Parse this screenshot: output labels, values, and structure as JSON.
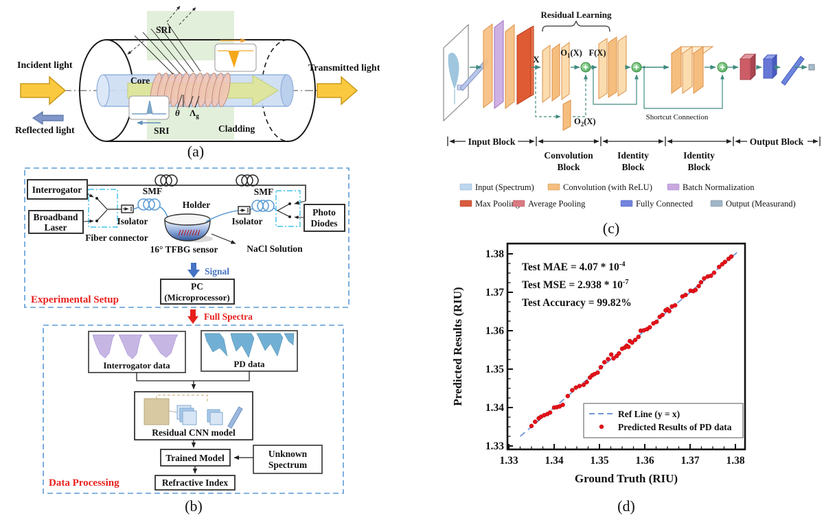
{
  "colors": {
    "teal_arrow": "#3E8A7E",
    "dashed_box_blue": "#5B9BD5",
    "connector_cyan": "#3FC0E8",
    "red_title": "#E8201C",
    "signal_blue": "#4472C4",
    "sri_green_bg": "#E2EFDA",
    "yellow_arrow": "#FBC93F",
    "core_blue": "#CDDDF2",
    "grating_salmon": "#F1C4B5"
  },
  "panel_a": {
    "caption": "(a)",
    "incident_light": "Incident light",
    "transmitted_light": "Transmitted light",
    "reflected_light": "Reflected light",
    "core": "Core",
    "cladding": "Cladding",
    "sri_top": "SRI",
    "sri_bottom": "SRI",
    "theta": "θ",
    "grating_period": {
      "base": "Λ",
      "sub": "g"
    }
  },
  "panel_b": {
    "caption": "(b)",
    "setup": {
      "title": "Experimental Setup",
      "interrogator": "Interrogator",
      "broadband_laser": {
        "line1": "Broadband",
        "line2": "Laser"
      },
      "fiber_connector": "Fiber connector",
      "isolator_left": "Isolator",
      "isolator_right": "Isolator",
      "smf_left": "SMF",
      "smf_right": "SMF",
      "holder": "Holder",
      "tfbg_sensor": "16° TFBG sensor",
      "nacl_solution": "NaCl Solution",
      "photo_diodes": {
        "line1": "Photo",
        "line2": "Diodes"
      },
      "signal": "Signal",
      "pc": {
        "line1": "PC",
        "line2": "(Microprocessor)"
      }
    },
    "full_spectra": "Full Spectra",
    "processing": {
      "title": "Data Processing",
      "interrogator_data": "Interrogator data",
      "pd_data": "PD data",
      "residual_cnn": "Residual CNN model",
      "trained_model": "Trained Model",
      "unknown_spectrum": {
        "line1": "Unknown",
        "line2": "Spectrum"
      },
      "refractive_index": "Refractive Index"
    }
  },
  "panel_c": {
    "caption": "(c)",
    "residual_learning": "Residual Learning",
    "x": "X",
    "o1": {
      "base": "O",
      "sub": "1",
      "rest": "(X)"
    },
    "fx": "F(X)",
    "o2": {
      "base": "O",
      "sub": "2",
      "rest": "(X)"
    },
    "shortcut_connection": "Shortcut Connection",
    "blocks": [
      {
        "line1": "Input Block",
        "line2": ""
      },
      {
        "line1": "Convolution",
        "line2": "Block"
      },
      {
        "line1": "Identity",
        "line2": "Block"
      },
      {
        "line1": "Identity",
        "line2": "Block"
      },
      {
        "line1": "Output Block",
        "line2": ""
      }
    ],
    "legend": [
      {
        "label": "Input (Spectrum)",
        "color": "#BDD7EE"
      },
      {
        "label": "Convolution (with ReLU)",
        "color": "#F5BE7E"
      },
      {
        "label": "Batch Normalization",
        "color": "#C9A8E0"
      },
      {
        "label": "Max Pooling",
        "color": "#D75B3F"
      },
      {
        "label": "Average Pooling",
        "color": "#D97B80"
      },
      {
        "label": "Fully Connected",
        "color": "#7284DC"
      },
      {
        "label": "Output (Measurand)",
        "color": "#9FB6C9"
      }
    ]
  },
  "panel_d": {
    "caption": "(d)"
  },
  "chart_data": {
    "type": "scatter",
    "title": "",
    "xlabel": "Ground Truth (RIU)",
    "ylabel": "Predicted Results (RIU)",
    "xlim": [
      1.33,
      1.38
    ],
    "ylim": [
      1.33,
      1.38
    ],
    "xticks": [
      1.33,
      1.34,
      1.35,
      1.36,
      1.37,
      1.38
    ],
    "yticks": [
      1.33,
      1.34,
      1.35,
      1.36,
      1.37,
      1.38
    ],
    "minor_tick_step": 0.0025,
    "grid": false,
    "legend_position": "lower right",
    "annotations": [
      {
        "base": "Test MAE = 4.07 * 10",
        "sup": "-4"
      },
      {
        "base": "Test MSE = 2.938 * 10",
        "sup": "-7"
      },
      {
        "base": "Test Accuracy = 99.82%",
        "sup": ""
      }
    ],
    "legend": [
      {
        "label": "Ref Line (y = x)",
        "marker": "dashed-line",
        "color": "#7096D8"
      },
      {
        "label": "Predicted Results of PD data",
        "marker": "dot",
        "color": "#E8111B"
      }
    ],
    "ref_line": {
      "x1": 1.3325,
      "y1": 1.3325,
      "x2": 1.3805,
      "y2": 1.3805
    },
    "series": [
      {
        "name": "Predicted Results of PD data",
        "points": [
          [
            1.335,
            1.3352
          ],
          [
            1.3358,
            1.3363
          ],
          [
            1.3366,
            1.3372
          ],
          [
            1.3371,
            1.3376
          ],
          [
            1.3378,
            1.338
          ],
          [
            1.3385,
            1.3383
          ],
          [
            1.3391,
            1.3387
          ],
          [
            1.34,
            1.34
          ],
          [
            1.3406,
            1.3401
          ],
          [
            1.3412,
            1.3403
          ],
          [
            1.3419,
            1.3407
          ],
          [
            1.343,
            1.343
          ],
          [
            1.344,
            1.3445
          ],
          [
            1.3448,
            1.3452
          ],
          [
            1.3456,
            1.3456
          ],
          [
            1.3465,
            1.3459
          ],
          [
            1.3472,
            1.3466
          ],
          [
            1.3479,
            1.3478
          ],
          [
            1.3484,
            1.3484
          ],
          [
            1.3489,
            1.3487
          ],
          [
            1.3496,
            1.3491
          ],
          [
            1.3503,
            1.3505
          ],
          [
            1.3511,
            1.3518
          ],
          [
            1.3519,
            1.3526
          ],
          [
            1.3526,
            1.3538
          ],
          [
            1.3531,
            1.3528
          ],
          [
            1.3538,
            1.3534
          ],
          [
            1.3543,
            1.3541
          ],
          [
            1.355,
            1.3553
          ],
          [
            1.3556,
            1.3556
          ],
          [
            1.356,
            1.3561
          ],
          [
            1.3564,
            1.3558
          ],
          [
            1.3567,
            1.3573
          ],
          [
            1.3572,
            1.3569
          ],
          [
            1.3579,
            1.3576
          ],
          [
            1.3586,
            1.3584
          ],
          [
            1.3591,
            1.36
          ],
          [
            1.3598,
            1.3601
          ],
          [
            1.3605,
            1.3604
          ],
          [
            1.3611,
            1.3609
          ],
          [
            1.3619,
            1.3619
          ],
          [
            1.3626,
            1.3623
          ],
          [
            1.3633,
            1.3636
          ],
          [
            1.3639,
            1.3641
          ],
          [
            1.3646,
            1.3653
          ],
          [
            1.365,
            1.3656
          ],
          [
            1.3654,
            1.3651
          ],
          [
            1.366,
            1.3663
          ],
          [
            1.3667,
            1.3666
          ],
          [
            1.3683,
            1.3689
          ],
          [
            1.369,
            1.3693
          ],
          [
            1.3701,
            1.3704
          ],
          [
            1.3707,
            1.3703
          ],
          [
            1.3712,
            1.3706
          ],
          [
            1.3719,
            1.3716
          ],
          [
            1.3724,
            1.3726
          ],
          [
            1.3731,
            1.3736
          ],
          [
            1.3739,
            1.3741
          ],
          [
            1.3746,
            1.3743
          ],
          [
            1.3753,
            1.3751
          ],
          [
            1.3764,
            1.3766
          ],
          [
            1.3771,
            1.3773
          ],
          [
            1.3777,
            1.3779
          ],
          [
            1.3785,
            1.3787
          ],
          [
            1.3791,
            1.3793
          ]
        ]
      }
    ]
  }
}
